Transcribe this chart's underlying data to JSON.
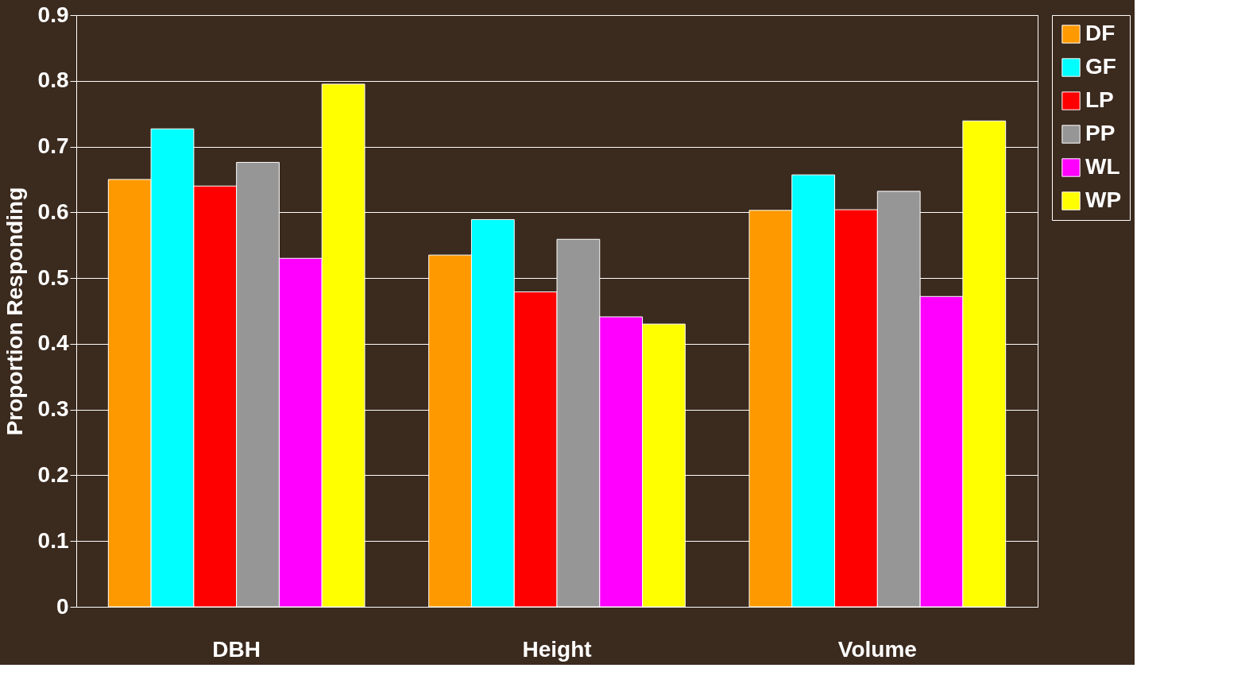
{
  "chart_data": {
    "type": "bar",
    "ylabel": "Proportion Responding",
    "categories": [
      "DBH",
      "Height",
      "Volume"
    ],
    "series": [
      {
        "name": "DF",
        "color": "#ff9900",
        "values": [
          0.65,
          0.535,
          0.603
        ]
      },
      {
        "name": "GF",
        "color": "#00ffff",
        "values": [
          0.727,
          0.589,
          0.657
        ]
      },
      {
        "name": "LP",
        "color": "#ff0000",
        "values": [
          0.64,
          0.479,
          0.604
        ]
      },
      {
        "name": "PP",
        "color": "#969696",
        "values": [
          0.676,
          0.559,
          0.632
        ]
      },
      {
        "name": "WL",
        "color": "#ff00ff",
        "values": [
          0.53,
          0.441,
          0.472
        ]
      },
      {
        "name": "WP",
        "color": "#ffff00",
        "values": [
          0.795,
          0.43,
          0.739
        ]
      }
    ],
    "ylim": [
      0,
      0.9
    ],
    "yticks": [
      0,
      0.1,
      0.2,
      0.3,
      0.4,
      0.5,
      0.6,
      0.7,
      0.8,
      0.9
    ],
    "grid": "y",
    "legend": "right"
  }
}
